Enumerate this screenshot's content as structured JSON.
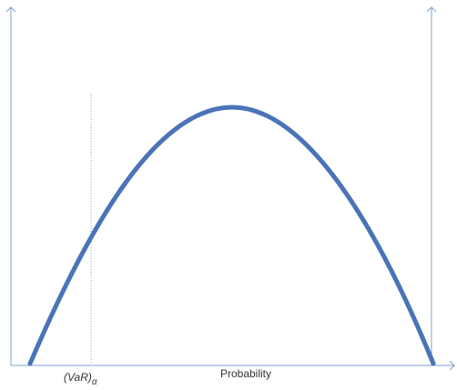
{
  "labels": {
    "var": "(VaR)",
    "alpha": "α",
    "x_axis": "Probability"
  }
}
